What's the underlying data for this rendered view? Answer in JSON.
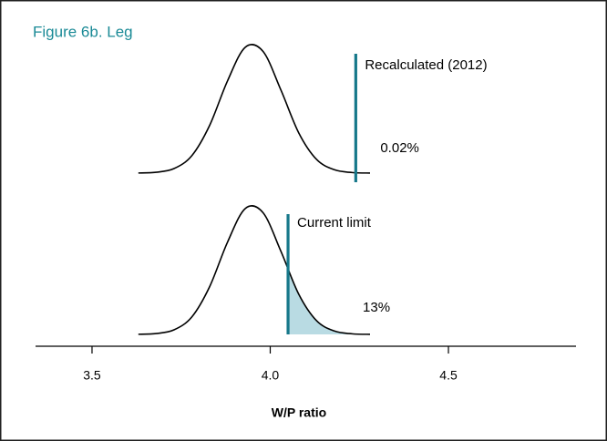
{
  "chart_data": {
    "type": "density",
    "title": "Figure 6b. Leg",
    "x_label": "W/P ratio",
    "xlim": [
      3.34,
      4.86
    ],
    "xticks": [
      3.5,
      {
        "value": 4,
        "label": "4.0"
      },
      4.5
    ],
    "x": [
      3.63,
      3.68,
      3.73,
      3.78,
      3.83,
      3.88,
      3.93,
      3.98,
      4.03,
      4.08,
      4.13,
      4.18,
      4.23,
      4.28
    ],
    "color": "#000000",
    "limit_color": "#16788a",
    "shade_color": "#b9dbe3",
    "title_color": "#1a8a96",
    "series": [
      {
        "name": "Recalculated (2012)",
        "values": [
          0.0008,
          0.0065,
          0.035,
          0.135,
          0.369,
          0.712,
          0.973,
          0.94,
          0.642,
          0.311,
          0.106,
          0.026,
          0.0044,
          0.0005
        ],
        "limit": 4.24,
        "tail_value": 0.02,
        "tail_label": "0.02%"
      },
      {
        "name": "Current limit",
        "values": [
          0.0008,
          0.0065,
          0.035,
          0.135,
          0.369,
          0.712,
          0.973,
          0.94,
          0.642,
          0.311,
          0.106,
          0.026,
          0.0044,
          0.0005
        ],
        "limit": 4.05,
        "tail_value": 13,
        "tail_label": "13%"
      }
    ]
  }
}
